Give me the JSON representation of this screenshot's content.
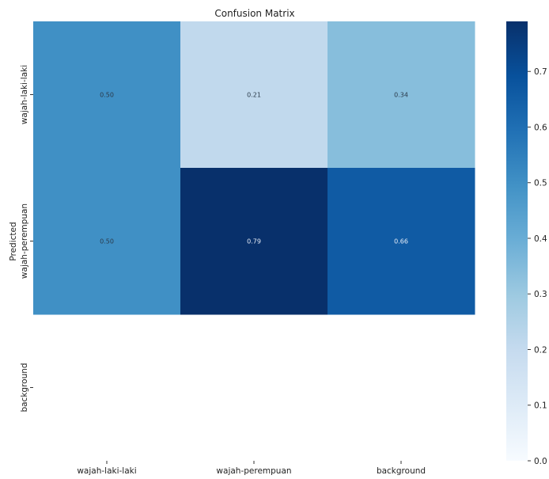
{
  "chart_data": {
    "type": "heatmap",
    "title": "Confusion Matrix",
    "ylabel": "Predicted",
    "xlabel": "",
    "x_categories": [
      "wajah-laki-laki",
      "wajah-perempuan",
      "background"
    ],
    "y_categories": [
      "wajah-laki-laki",
      "wajah-perempuan",
      "background"
    ],
    "values": [
      [
        0.5,
        0.21,
        0.34
      ],
      [
        0.5,
        0.79,
        0.66
      ],
      [
        null,
        null,
        null
      ]
    ],
    "cell_labels": [
      [
        "0.50",
        "0.21",
        "0.34"
      ],
      [
        "0.50",
        "0.79",
        "0.66"
      ],
      [
        "",
        "",
        ""
      ]
    ],
    "colormap": "Blues",
    "colormap_stops": [
      "#f7fbff",
      "#deebf7",
      "#c6dbef",
      "#9ecae1",
      "#6baed6",
      "#4292c6",
      "#2171b5",
      "#08519c",
      "#08306b"
    ],
    "colorbar": {
      "range": [
        0,
        0.79
      ],
      "ticks": [
        0.0,
        0.1,
        0.2,
        0.3,
        0.4,
        0.5,
        0.6,
        0.7
      ],
      "tick_labels": [
        "0.0",
        "0.1",
        "0.2",
        "0.3",
        "0.4",
        "0.5",
        "0.6",
        "0.7"
      ]
    },
    "grid": false,
    "legend": "colorbar-right"
  }
}
